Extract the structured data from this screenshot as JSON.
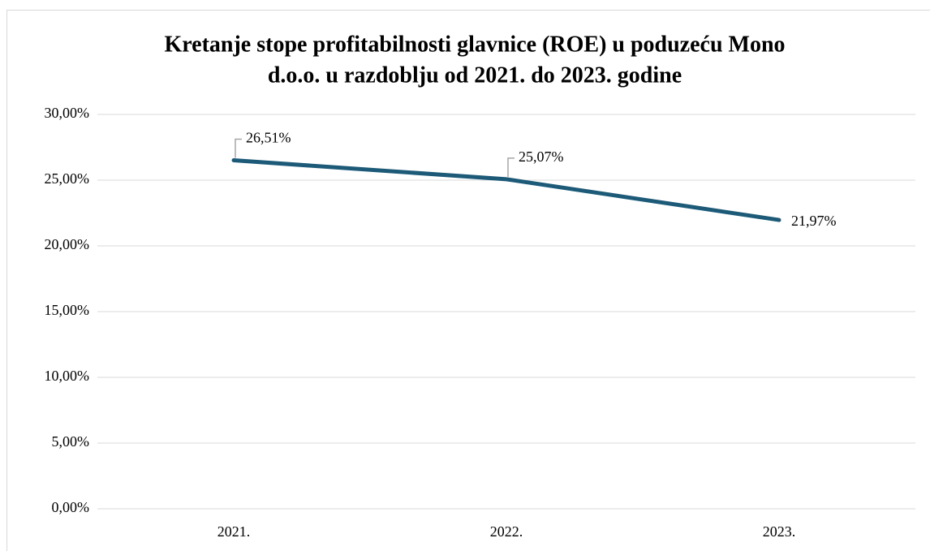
{
  "chart_data": {
    "type": "line",
    "title": [
      "Kretanje stope profitabilnosti glavnice (ROE) u poduzeću Mono",
      "d.o.o. u razdoblju od 2021. do 2023. godine"
    ],
    "categories": [
      "2021.",
      "2022.",
      "2023."
    ],
    "series": [
      {
        "name": "ROE",
        "color": "#1c5a78",
        "values": [
          26.51,
          25.07,
          21.97
        ],
        "value_labels": [
          "26,51%",
          "25,07%",
          "21,97%"
        ]
      }
    ],
    "ylim": [
      0,
      30
    ],
    "yticks": [
      {
        "value": 0,
        "label": "0,00%"
      },
      {
        "value": 5,
        "label": "5,00%"
      },
      {
        "value": 10,
        "label": "10,00%"
      },
      {
        "value": 15,
        "label": "15,00%"
      },
      {
        "value": 20,
        "label": "20,00%"
      },
      {
        "value": 25,
        "label": "25,00%"
      },
      {
        "value": 30,
        "label": "30,00%"
      }
    ],
    "grid": true
  }
}
